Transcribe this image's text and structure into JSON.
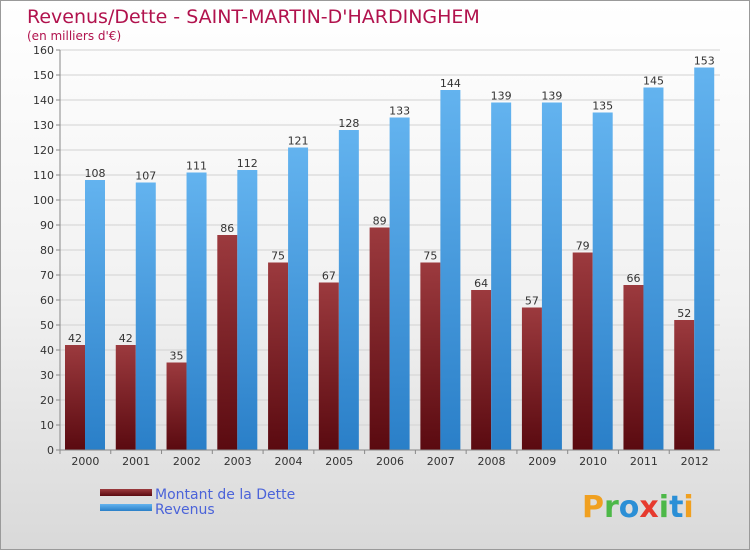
{
  "chart_data": {
    "type": "bar",
    "title": "Revenus/Dette - SAINT-MARTIN-D'HARDINGHEM",
    "subtitle": "(en milliers d'€)",
    "categories": [
      "2000",
      "2001",
      "2002",
      "2003",
      "2004",
      "2005",
      "2006",
      "2007",
      "2008",
      "2009",
      "2010",
      "2011",
      "2012"
    ],
    "series": [
      {
        "name": "Montant de la Dette",
        "values": [
          42,
          42,
          35,
          86,
          75,
          67,
          89,
          75,
          64,
          57,
          79,
          66,
          52
        ],
        "color": "#7a1c24"
      },
      {
        "name": "Revenus",
        "values": [
          108,
          107,
          111,
          112,
          121,
          128,
          133,
          144,
          139,
          139,
          135,
          145,
          153
        ],
        "color": "#4a9ee4"
      }
    ],
    "ylim": [
      0,
      160
    ],
    "ytick_step": 10,
    "grid": true,
    "legend_position": "bottom-left"
  },
  "logo": {
    "letters": [
      "P",
      "r",
      "o",
      "x",
      "i",
      "t",
      "i"
    ],
    "colors": [
      "#f0a020",
      "#4db848",
      "#2b8fd6",
      "#e63a2e",
      "#4db848",
      "#2b8fd6",
      "#f0a020"
    ]
  }
}
